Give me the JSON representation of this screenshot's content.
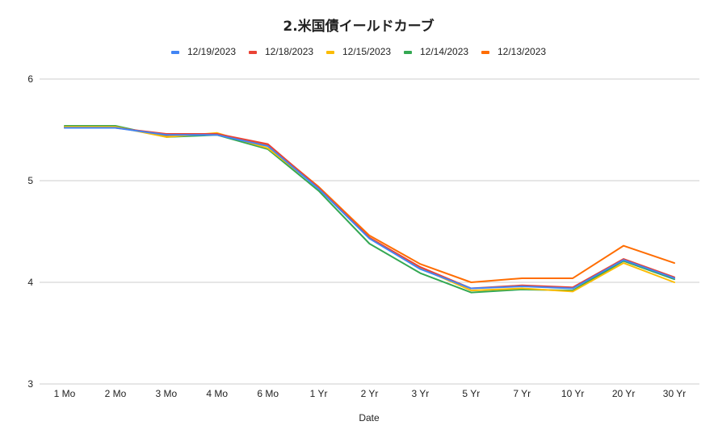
{
  "chart_data": {
    "type": "line",
    "title": "2.米国債イールドカーブ",
    "xlabel": "Date",
    "ylabel": "",
    "categories": [
      "1 Mo",
      "2 Mo",
      "3 Mo",
      "4 Mo",
      "6 Mo",
      "1 Yr",
      "2 Yr",
      "3 Yr",
      "5 Yr",
      "7 Yr",
      "10 Yr",
      "20 Yr",
      "30 Yr"
    ],
    "ylim": [
      3,
      6
    ],
    "yticks": [
      3,
      4,
      5,
      6
    ],
    "grid": true,
    "legend_position": "top",
    "series": [
      {
        "name": "12/19/2023",
        "color": "#4285f4",
        "values": [
          5.52,
          5.52,
          5.45,
          5.45,
          5.34,
          4.92,
          4.43,
          4.13,
          3.94,
          3.96,
          3.94,
          4.22,
          4.04
        ]
      },
      {
        "name": "12/18/2023",
        "color": "#ea4335",
        "values": [
          5.52,
          5.52,
          5.46,
          5.46,
          5.36,
          4.93,
          4.44,
          4.15,
          3.94,
          3.97,
          3.95,
          4.23,
          4.05
        ]
      },
      {
        "name": "12/15/2023",
        "color": "#fbbc04",
        "values": [
          5.53,
          5.53,
          5.43,
          5.47,
          5.32,
          4.93,
          4.44,
          4.14,
          3.92,
          3.94,
          3.91,
          4.19,
          4.0
        ]
      },
      {
        "name": "12/14/2023",
        "color": "#34a853",
        "values": [
          5.54,
          5.54,
          5.43,
          5.45,
          5.31,
          4.9,
          4.38,
          4.09,
          3.9,
          3.93,
          3.92,
          4.21,
          4.03
        ]
      },
      {
        "name": "12/13/2023",
        "color": "#ff6d01",
        "values": [
          5.53,
          5.53,
          5.44,
          5.46,
          5.35,
          4.94,
          4.46,
          4.18,
          4.0,
          4.04,
          4.04,
          4.36,
          4.19
        ]
      }
    ]
  }
}
